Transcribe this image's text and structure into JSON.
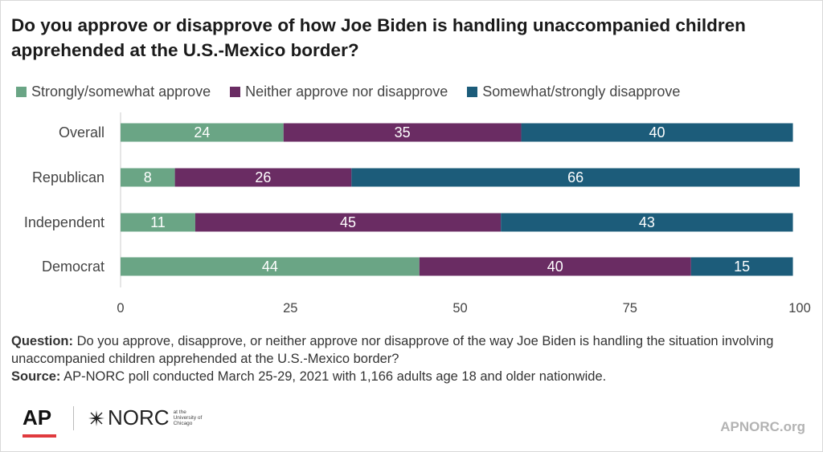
{
  "title": "Do you approve or disapprove of how Joe Biden is handling unaccompanied children apprehended at the U.S.-Mexico border?",
  "legend": [
    {
      "label": "Strongly/somewhat approve",
      "color": "#6aa585"
    },
    {
      "label": "Neither approve nor disapprove",
      "color": "#6a2c63"
    },
    {
      "label": "Somewhat/strongly disapprove",
      "color": "#1c5c7a"
    }
  ],
  "chart_data": {
    "type": "bar",
    "orientation": "horizontal",
    "stacked": true,
    "categories": [
      "Overall",
      "Republican",
      "Independent",
      "Democrat"
    ],
    "series": [
      {
        "name": "Strongly/somewhat approve",
        "values": [
          24,
          8,
          11,
          44
        ],
        "color": "#6aa585"
      },
      {
        "name": "Neither approve nor disapprove",
        "values": [
          35,
          26,
          45,
          40
        ],
        "color": "#6a2c63"
      },
      {
        "name": "Somewhat/strongly disapprove",
        "values": [
          40,
          66,
          43,
          15
        ],
        "color": "#1c5c7a"
      }
    ],
    "xlim": [
      0,
      100
    ],
    "xticks": [
      "0",
      "25",
      "50",
      "75",
      "100"
    ],
    "grid": false,
    "legend_position": "top"
  },
  "footer": {
    "question_label": "Question:",
    "question_text": "Do you approve, disapprove, or neither approve nor disapprove of the way Joe Biden is handling the situation involving unaccompanied children apprehended at the U.S.-Mexico border?",
    "source_label": "Source:",
    "source_text": "AP-NORC poll conducted March 25-29, 2021 with 1,166 adults age 18 and older nationwide."
  },
  "logos": {
    "ap": "AP",
    "norc": "NORC",
    "norc_sub": "at the University of Chicago"
  },
  "site": "APNORC.org"
}
